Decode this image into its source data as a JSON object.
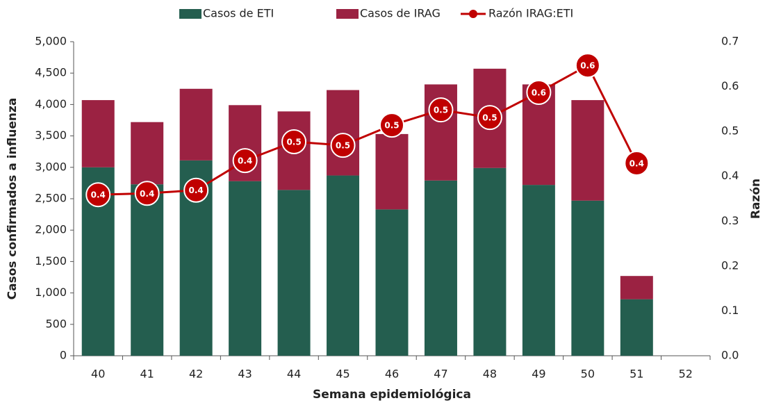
{
  "chart_data": {
    "type": "bar",
    "stacked": true,
    "x_label": "Semana epidemiológica",
    "y_label": "Casos confirmados a influenza",
    "y2_label": "Razón",
    "categories": [
      "40",
      "41",
      "42",
      "43",
      "44",
      "45",
      "46",
      "47",
      "48",
      "49",
      "50",
      "51",
      "52"
    ],
    "series": [
      {
        "name": "Casos de ETI",
        "type": "bar",
        "color": "#245e4f",
        "values": [
          3000,
          2730,
          3110,
          2780,
          2640,
          2870,
          2330,
          2790,
          2990,
          2720,
          2470,
          900,
          null
        ]
      },
      {
        "name": "Casos de IRAG",
        "type": "bar",
        "color": "#9b2242",
        "values": [
          1070,
          990,
          1140,
          1210,
          1250,
          1360,
          1200,
          1530,
          1580,
          1600,
          1600,
          370,
          null
        ]
      },
      {
        "name": "Razón IRAG:ETI",
        "type": "line",
        "axis": "y2",
        "color": "#c00000",
        "values": [
          0.359,
          0.362,
          0.369,
          0.435,
          0.477,
          0.469,
          0.514,
          0.548,
          0.531,
          0.587,
          0.647,
          0.429,
          null
        ],
        "value_labels": [
          "0.4",
          "0.4",
          "0.4",
          "0.4",
          "0.5",
          "0.5",
          "0.5",
          "0.5",
          "0.5",
          "0.6",
          "0.6",
          "0.4",
          null
        ]
      }
    ],
    "ylim": [
      0,
      5000
    ],
    "yticks": [
      0,
      500,
      {
        "value": 1000,
        "label": "1,000"
      },
      {
        "value": 1500,
        "label": "1,500"
      },
      {
        "value": 2000,
        "label": "2,000"
      },
      {
        "value": 2500,
        "label": "2,500"
      },
      {
        "value": 3000,
        "label": "3,000"
      },
      {
        "value": 3500,
        "label": "3,500"
      },
      {
        "value": 4000,
        "label": "4,000"
      },
      {
        "value": 4500,
        "label": "4,500"
      },
      {
        "value": 5000,
        "label": "5,000"
      }
    ],
    "y2lim": [
      0,
      0.7
    ],
    "y2ticks": [
      {
        "value": 0,
        "label": "0.0"
      },
      0.1,
      0.2,
      0.3,
      0.4,
      0.5,
      0.6,
      0.7
    ],
    "legend": "top"
  }
}
